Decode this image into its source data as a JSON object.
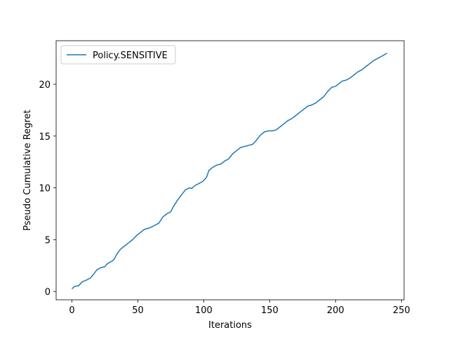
{
  "chart_data": {
    "type": "line",
    "xlabel": "Iterations",
    "ylabel": "Pseudo Cumulative Regret",
    "xlim": [
      -12,
      252
    ],
    "ylim": [
      -0.8,
      24.2
    ],
    "xticks": [
      0,
      50,
      100,
      150,
      200,
      250
    ],
    "yticks": [
      0,
      5,
      10,
      15,
      20
    ],
    "grid": false,
    "legend_position": "top-left",
    "series": [
      {
        "name": "Policy.SENSITIVE",
        "color": "#1f77b4",
        "points": [
          [
            0,
            0.25
          ],
          [
            2,
            0.5
          ],
          [
            5,
            0.55
          ],
          [
            8,
            0.95
          ],
          [
            11,
            1.1
          ],
          [
            14,
            1.3
          ],
          [
            16,
            1.6
          ],
          [
            19,
            2.1
          ],
          [
            22,
            2.3
          ],
          [
            25,
            2.4
          ],
          [
            27,
            2.7
          ],
          [
            30,
            2.9
          ],
          [
            32,
            3.1
          ],
          [
            34,
            3.6
          ],
          [
            37,
            4.1
          ],
          [
            40,
            4.4
          ],
          [
            43,
            4.7
          ],
          [
            46,
            5.0
          ],
          [
            49,
            5.4
          ],
          [
            52,
            5.7
          ],
          [
            55,
            6.0
          ],
          [
            58,
            6.1
          ],
          [
            60,
            6.2
          ],
          [
            63,
            6.4
          ],
          [
            66,
            6.6
          ],
          [
            69,
            7.2
          ],
          [
            72,
            7.5
          ],
          [
            75,
            7.7
          ],
          [
            77,
            8.2
          ],
          [
            80,
            8.8
          ],
          [
            83,
            9.3
          ],
          [
            86,
            9.8
          ],
          [
            89,
            10.0
          ],
          [
            91,
            9.95
          ],
          [
            93,
            10.2
          ],
          [
            96,
            10.4
          ],
          [
            99,
            10.6
          ],
          [
            102,
            11.0
          ],
          [
            104,
            11.7
          ],
          [
            107,
            12.0
          ],
          [
            110,
            12.2
          ],
          [
            113,
            12.3
          ],
          [
            116,
            12.6
          ],
          [
            119,
            12.8
          ],
          [
            122,
            13.3
          ],
          [
            125,
            13.6
          ],
          [
            128,
            13.9
          ],
          [
            131,
            14.0
          ],
          [
            134,
            14.1
          ],
          [
            137,
            14.2
          ],
          [
            140,
            14.6
          ],
          [
            143,
            15.1
          ],
          [
            146,
            15.4
          ],
          [
            149,
            15.5
          ],
          [
            152,
            15.5
          ],
          [
            155,
            15.6
          ],
          [
            158,
            15.9
          ],
          [
            161,
            16.2
          ],
          [
            164,
            16.5
          ],
          [
            167,
            16.7
          ],
          [
            170,
            17.0
          ],
          [
            173,
            17.3
          ],
          [
            176,
            17.6
          ],
          [
            179,
            17.9
          ],
          [
            182,
            18.0
          ],
          [
            185,
            18.2
          ],
          [
            188,
            18.5
          ],
          [
            191,
            18.8
          ],
          [
            194,
            19.3
          ],
          [
            197,
            19.7
          ],
          [
            200,
            19.8
          ],
          [
            202,
            20.0
          ],
          [
            205,
            20.3
          ],
          [
            208,
            20.4
          ],
          [
            211,
            20.6
          ],
          [
            214,
            20.9
          ],
          [
            217,
            21.2
          ],
          [
            220,
            21.4
          ],
          [
            223,
            21.7
          ],
          [
            226,
            22.0
          ],
          [
            229,
            22.3
          ],
          [
            232,
            22.5
          ],
          [
            235,
            22.7
          ],
          [
            239,
            23.0
          ]
        ]
      }
    ]
  }
}
